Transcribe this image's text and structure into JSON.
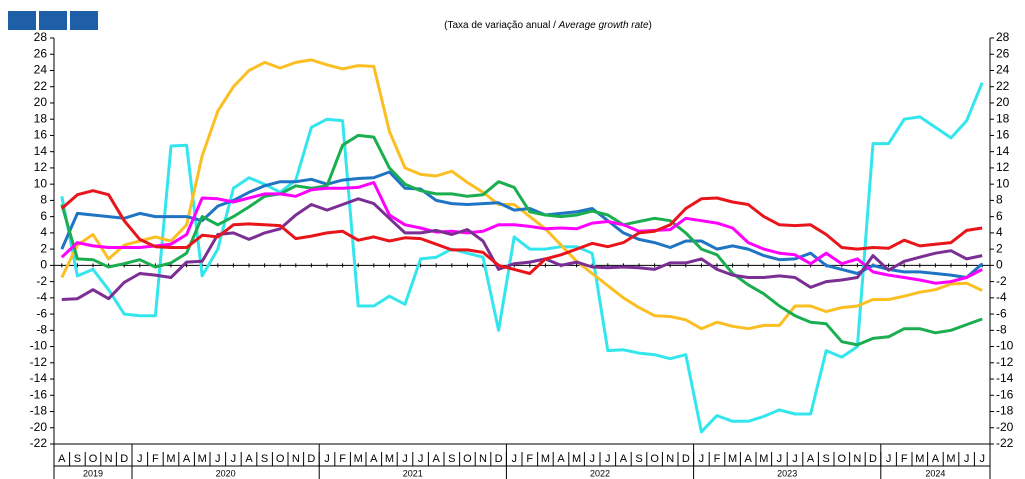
{
  "chart_data": {
    "type": "line",
    "subtitle_pt": "(Taxa de variação anual / ",
    "subtitle_en": "Average growth rate",
    "subtitle_end": ")",
    "groups": [
      {
        "label": "2019",
        "months": [
          "A",
          "S",
          "O",
          "N",
          "D"
        ]
      },
      {
        "label": "2020",
        "months": [
          "J",
          "F",
          "M",
          "A",
          "M",
          "J",
          "J",
          "A",
          "S",
          "O",
          "N",
          "D"
        ]
      },
      {
        "label": "2021",
        "months": [
          "J",
          "F",
          "M",
          "A",
          "M",
          "J",
          "J",
          "A",
          "S",
          "O",
          "N",
          "D"
        ]
      },
      {
        "label": "2022",
        "months": [
          "J",
          "F",
          "M",
          "A",
          "M",
          "J",
          "J",
          "A",
          "S",
          "O",
          "N",
          "D"
        ]
      },
      {
        "label": "2023",
        "months": [
          "J",
          "F",
          "M",
          "A",
          "M",
          "J",
          "J",
          "A",
          "S",
          "O",
          "N",
          "D"
        ]
      },
      {
        "label": "2024",
        "months": [
          "J",
          "F",
          "M",
          "A",
          "M",
          "J",
          "J"
        ]
      }
    ],
    "ylim": [
      -22,
      28
    ],
    "yticks": [
      -22,
      -20,
      -18,
      -16,
      -14,
      -12,
      -10,
      -8,
      -6,
      -4,
      -2,
      0,
      2,
      4,
      6,
      8,
      10,
      12,
      14,
      16,
      18,
      20,
      22,
      24,
      26,
      28
    ],
    "right_axis": true,
    "series": [
      {
        "color": "#33e6ee",
        "values": [
          8.5,
          -1.3,
          -0.5,
          -3,
          -6,
          -6.2,
          -6.2,
          14.7,
          14.8,
          -1.3,
          2,
          9.5,
          10.8,
          10,
          9,
          10.5,
          17,
          18,
          17.8,
          -5,
          -5,
          -3.8,
          -4.8,
          0.8,
          1,
          2,
          1.5,
          1,
          -8,
          3.5,
          2,
          2,
          2.3,
          2.3,
          1.5,
          -10.5,
          -10.4,
          -10.8,
          -11,
          -11.5,
          -11,
          -20.5,
          -18.5,
          -19.2,
          -19.2,
          -18.6,
          -17.8,
          -18.3,
          -18.3,
          -10.5,
          -11.3,
          -10,
          15,
          15,
          18,
          18.3,
          17,
          15.7,
          17.8,
          22.5
        ]
      },
      {
        "color": "#fbbf24",
        "values": [
          -1.5,
          2.5,
          3.8,
          0.8,
          2.5,
          3,
          3.5,
          3,
          5,
          13.5,
          19,
          22,
          24,
          25,
          24.3,
          25,
          25.3,
          24.7,
          24.2,
          24.6,
          24.5,
          16.5,
          12,
          11.2,
          11,
          11.6,
          10.2,
          9,
          7.5,
          7.5,
          6,
          4.5,
          2.5,
          0.5,
          -1,
          -2.5,
          -4,
          -5.2,
          -6.2,
          -6.3,
          -6.7,
          -7.8,
          -7,
          -7.5,
          -7.8,
          -7.4,
          -7.4,
          -5,
          -5,
          -5.7,
          -5.2,
          -5,
          -4.2,
          -4.2,
          -3.8,
          -3.3,
          -3,
          -2.3,
          -2.2,
          -3.1
        ]
      },
      {
        "color": "#1f75c4",
        "values": [
          2,
          6.4,
          6.2,
          6,
          5.8,
          6.4,
          6,
          6,
          6,
          5.5,
          7.3,
          8,
          9,
          9.8,
          10.3,
          10.3,
          10.6,
          10,
          10.5,
          10.7,
          10.8,
          11.5,
          9.5,
          9.4,
          8,
          7.6,
          7.5,
          7.6,
          7.7,
          6.8,
          7,
          6.2,
          6.4,
          6.6,
          7,
          5.5,
          4,
          3.2,
          2.8,
          2.2,
          3,
          3,
          2,
          2.4,
          2,
          1.2,
          0.7,
          0.8,
          1.5,
          0,
          -0.5,
          -1,
          0,
          -0.5,
          -0.8,
          -0.8,
          -1,
          -1.2,
          -1.5,
          0.2
        ]
      },
      {
        "color": "#1aae50",
        "values": [
          7.5,
          0.8,
          0.7,
          -0.2,
          0.2,
          0.7,
          -0.2,
          0.3,
          1.5,
          6,
          5,
          6,
          7.2,
          8.5,
          8.8,
          9.8,
          9.5,
          9.8,
          14.8,
          16,
          15.8,
          12,
          10,
          9.2,
          8.8,
          8.8,
          8.5,
          8.7,
          10.3,
          9.6,
          6.6,
          6.2,
          6,
          6.2,
          6.7,
          6.2,
          5,
          5.4,
          5.8,
          5.5,
          4,
          2,
          1.3,
          -1,
          -2.4,
          -3.5,
          -5,
          -6.2,
          -7,
          -7.2,
          -9.4,
          -9.8,
          -9,
          -8.8,
          -7.8,
          -7.8,
          -8.3,
          -8,
          -7.3,
          -6.6
        ]
      },
      {
        "color": "#ff00ff",
        "values": [
          1,
          2.8,
          2.4,
          2.2,
          2.2,
          2.2,
          2.4,
          2.6,
          3.8,
          8.3,
          8.2,
          7.8,
          8.3,
          8.8,
          8.8,
          8.5,
          9.3,
          9.5,
          9.5,
          9.6,
          10.2,
          6.2,
          5,
          4.6,
          4.1,
          4.2,
          4,
          4.2,
          5,
          5,
          4.8,
          4.5,
          4.6,
          4.5,
          5.2,
          5.4,
          5,
          4.2,
          4.3,
          4.4,
          5.8,
          5.5,
          5.2,
          4.6,
          2.8,
          2,
          1.5,
          1.3,
          0.2,
          1.5,
          0.2,
          0.8,
          -0.8,
          -1.2,
          -1.5,
          -1.8,
          -2.2,
          -2,
          -1.5,
          -0.5
        ]
      },
      {
        "color": "#7b2f94",
        "values": [
          -4.2,
          -4.1,
          -3,
          -4.1,
          -2.1,
          -1,
          -1.2,
          -1.5,
          0.4,
          0.5,
          3.8,
          4,
          3.2,
          4,
          4.5,
          6.2,
          7.5,
          6.8,
          7.5,
          8.2,
          7.6,
          5.8,
          4,
          4,
          4.3,
          3.8,
          4.4,
          3,
          -0.5,
          0.2,
          0.4,
          0.8,
          0,
          0.4,
          -0.2,
          -0.3,
          -0.2,
          -0.3,
          -0.5,
          0.3,
          0.3,
          0.8,
          -0.5,
          -1.2,
          -1.5,
          -1.5,
          -1.3,
          -1.5,
          -2.7,
          -2,
          -1.8,
          -1.5,
          1.2,
          -0.6,
          0.5,
          1,
          1.5,
          1.8,
          0.8,
          1.2
        ]
      },
      {
        "color": "#e8151b",
        "values": [
          7,
          8.7,
          9.2,
          8.7,
          5.5,
          3.2,
          2.3,
          2.2,
          2.2,
          3.7,
          3.5,
          5,
          5.1,
          5,
          4.9,
          3.3,
          3.6,
          4,
          4.2,
          3.1,
          3.5,
          3,
          3.4,
          3.3,
          2.6,
          1.9,
          1.9,
          1.6,
          0,
          -0.5,
          -1,
          0.8,
          1.3,
          2,
          2.7,
          2.3,
          2.8,
          4,
          4.2,
          5,
          7,
          8.2,
          8.3,
          7.8,
          7.5,
          6,
          5,
          4.9,
          5,
          3.8,
          2.2,
          2,
          2.2,
          2.1,
          3.1,
          2.4,
          2.6,
          2.8,
          4.3,
          4.6
        ]
      }
    ]
  }
}
